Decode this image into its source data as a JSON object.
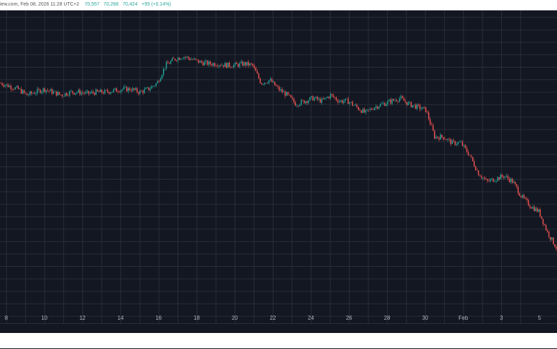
{
  "header": {
    "source": "iew.com",
    "datetime": "Feb 08, 2026 11:28 UTC+2",
    "high": "70,557",
    "low": "70,268",
    "close": "70,424",
    "change": "+95 (+0.14%)"
  },
  "colors": {
    "background": "#131722",
    "grid": "#2a2e39",
    "up": "#26a69a",
    "down": "#ef5350",
    "axis_text": "#b2b5be"
  },
  "chart_data": {
    "type": "candlestick",
    "x_tick_labels": [
      "8",
      "10",
      "12",
      "14",
      "16",
      "18",
      "20",
      "22",
      "24",
      "26",
      "28",
      "30",
      "Feb",
      "3",
      "5"
    ],
    "price_path_note": "",
    "series": [
      {
        "values": [
          0.78,
          0.77,
          0.76,
          0.74,
          0.75,
          0.76,
          0.75,
          0.74,
          0.75,
          0.75,
          0.745,
          0.75,
          0.75,
          0.755,
          0.76,
          0.76,
          0.75,
          0.76,
          0.78,
          0.84,
          0.86,
          0.87,
          0.86,
          0.85,
          0.845,
          0.845,
          0.84,
          0.84,
          0.845,
          0.84,
          0.78,
          0.79,
          0.76,
          0.74,
          0.71,
          0.72,
          0.73,
          0.72,
          0.74,
          0.72,
          0.72,
          0.7,
          0.68,
          0.7,
          0.71,
          0.72,
          0.73,
          0.71,
          0.7,
          0.69,
          0.6,
          0.6,
          0.58,
          0.58,
          0.54,
          0.48,
          0.45,
          0.46,
          0.47,
          0.45,
          0.4,
          0.37,
          0.35,
          0.28,
          0.23
        ]
      }
    ],
    "xlim": [
      0,
      64
    ],
    "ylim": [
      0,
      1
    ],
    "grid": true,
    "legend": "none"
  }
}
